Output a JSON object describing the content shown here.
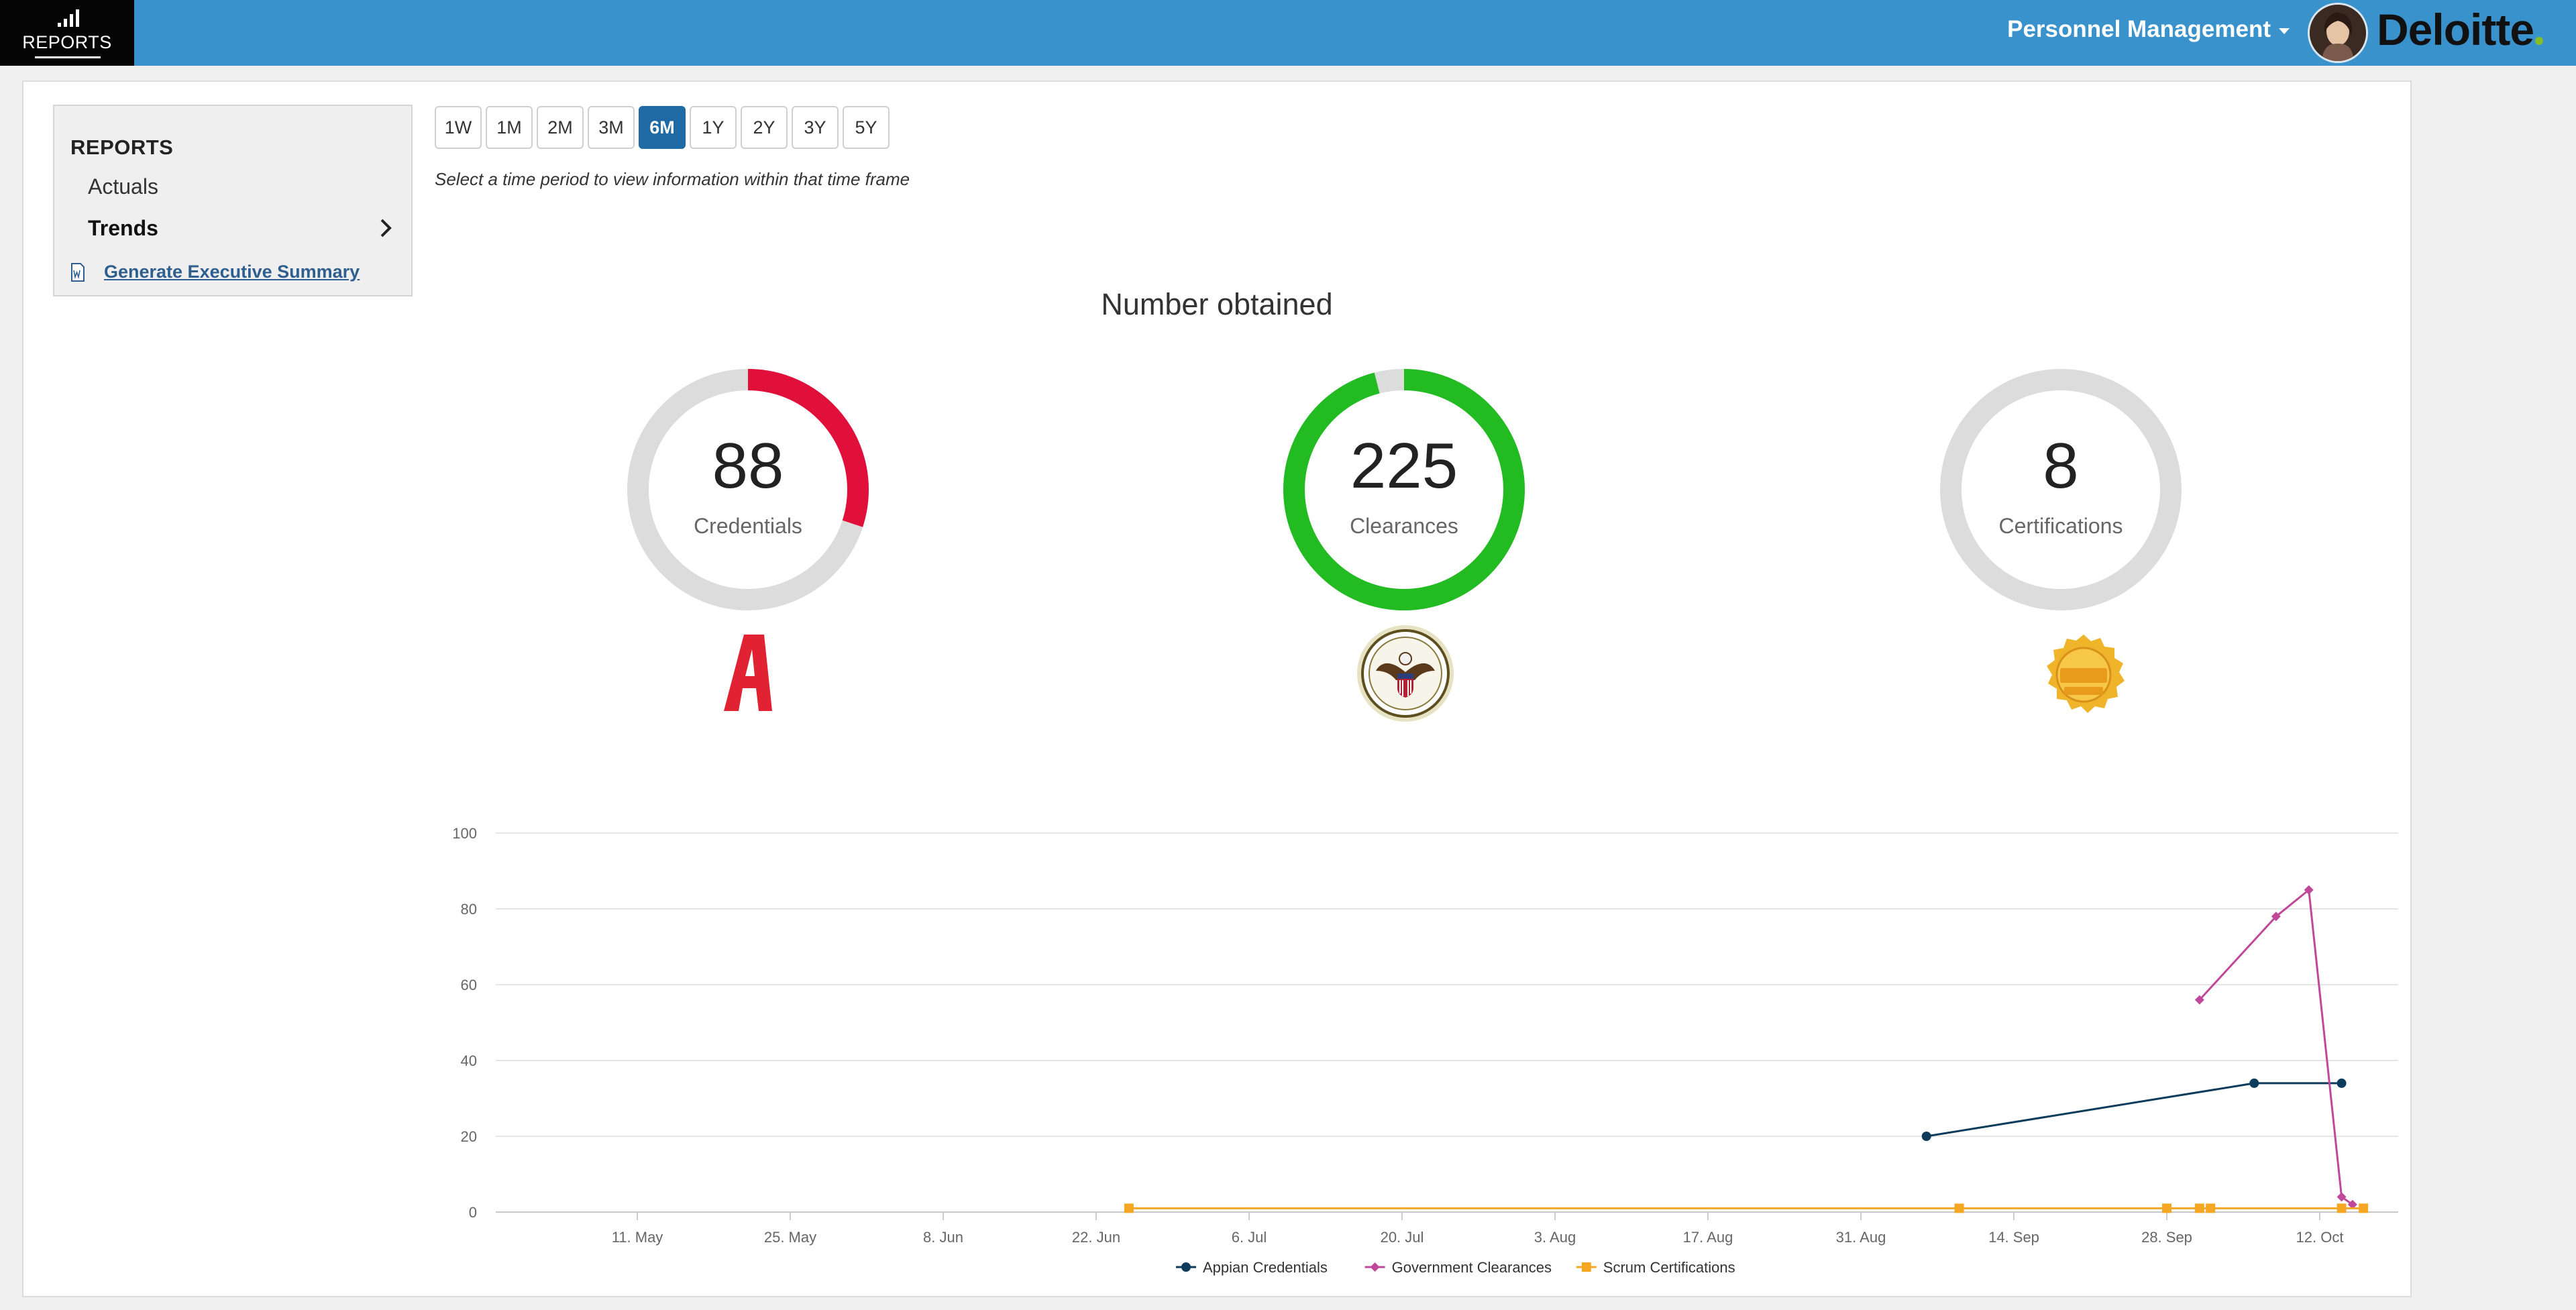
{
  "topbar": {
    "reports_label": "REPORTS",
    "menu_label": "Personnel Management",
    "brand": "Deloitte",
    "brand_dot_color": "#86bc25",
    "bar_color": "#3a92cc"
  },
  "sidebar": {
    "heading": "REPORTS",
    "items": [
      {
        "label": "Actuals"
      },
      {
        "label": "Trends",
        "active": true
      }
    ],
    "exec_summary": "Generate Executive Summary"
  },
  "periods": {
    "buttons": [
      "1W",
      "1M",
      "2M",
      "3M",
      "6M",
      "1Y",
      "2Y",
      "3Y",
      "5Y"
    ],
    "selected": "6M",
    "hint": "Select a time period to view information within that time frame"
  },
  "summary": {
    "title": "Number obtained",
    "gauges": [
      {
        "value": "88",
        "label": "Credentials",
        "color": "#e0103a",
        "fraction": 0.3,
        "icon": "appian-logo"
      },
      {
        "value": "225",
        "label": "Clearances",
        "color": "#22bb22",
        "fraction": 0.96,
        "icon": "us-state-dept-seal"
      },
      {
        "value": "8",
        "label": "Certifications",
        "color": "#d9d9d9",
        "fraction": 0,
        "icon": "csm-certified-badge"
      }
    ]
  },
  "chart_data": {
    "type": "line",
    "x_ticks": [
      "11. May",
      "25. May",
      "8. Jun",
      "22. Jun",
      "6. Jul",
      "20. Jul",
      "3. Aug",
      "17. Aug",
      "31. Aug",
      "14. Sep",
      "28. Sep",
      "12. Oct"
    ],
    "y_ticks": [
      "0",
      "20",
      "40",
      "60",
      "80",
      "100"
    ],
    "ylim": [
      0,
      100
    ],
    "grid": true,
    "legend_position": "bottom",
    "series": [
      {
        "name": "Appian Credentials",
        "color": "#0d3b5c",
        "marker": "circle",
        "points": [
          [
            "2025-09-06",
            20
          ],
          [
            "2025-10-06",
            34
          ],
          [
            "2025-10-14",
            34
          ]
        ]
      },
      {
        "name": "Government Clearances",
        "color": "#c0489a",
        "marker": "diamond",
        "points": [
          [
            "2025-10-01",
            56
          ],
          [
            "2025-10-08",
            78
          ],
          [
            "2025-10-11",
            85
          ],
          [
            "2025-10-14",
            4
          ],
          [
            "2025-10-15",
            2
          ]
        ]
      },
      {
        "name": "Scrum Certifications",
        "color": "#f5a623",
        "marker": "square",
        "points": [
          [
            "2025-06-25",
            1
          ],
          [
            "2025-09-09",
            1
          ],
          [
            "2025-09-28",
            1
          ],
          [
            "2025-10-01",
            1
          ],
          [
            "2025-10-02",
            1
          ],
          [
            "2025-10-14",
            1
          ],
          [
            "2025-10-16",
            1
          ]
        ]
      }
    ]
  }
}
